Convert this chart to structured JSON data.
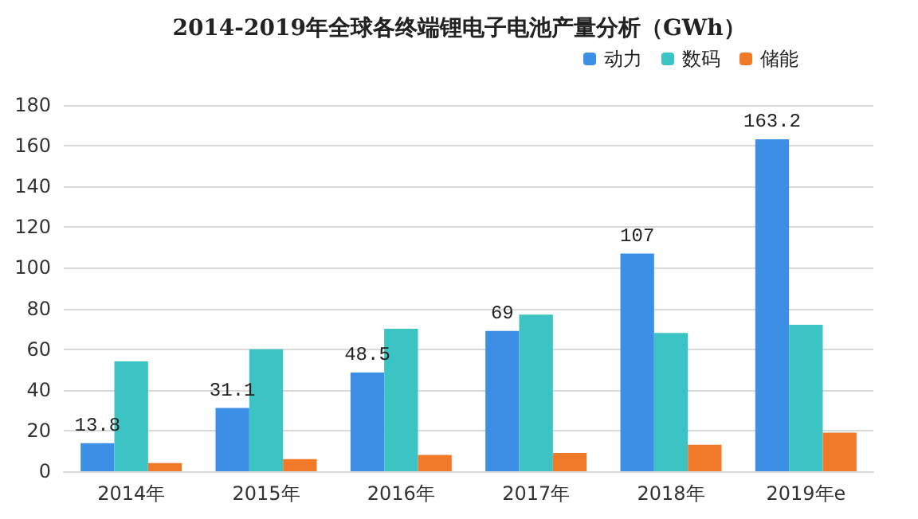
{
  "chart_data": {
    "type": "bar",
    "title": "2014-2019年全球各终端锂电子电池产量分析（GWh）",
    "categories": [
      "2014年",
      "2015年",
      "2016年",
      "2017年",
      "2018年",
      "2019年e"
    ],
    "series": [
      {
        "name": "动力",
        "color": "#3d8fe6",
        "values": [
          13.8,
          31.1,
          48.5,
          69,
          107,
          163.2
        ],
        "value_labels": [
          "13.8",
          "31.1",
          "48.5",
          "69",
          "107",
          "163.2"
        ]
      },
      {
        "name": "数码",
        "color": "#3cc3c3",
        "values": [
          54,
          60,
          70,
          77,
          68,
          72
        ]
      },
      {
        "name": "储能",
        "color": "#f07a2a",
        "values": [
          4,
          6,
          8,
          9,
          13,
          19
        ]
      }
    ],
    "ylim": [
      0,
      180
    ],
    "yticks": [
      0,
      20,
      40,
      60,
      80,
      100,
      120,
      140,
      160,
      180
    ],
    "grid": "y",
    "legend": "top right"
  }
}
